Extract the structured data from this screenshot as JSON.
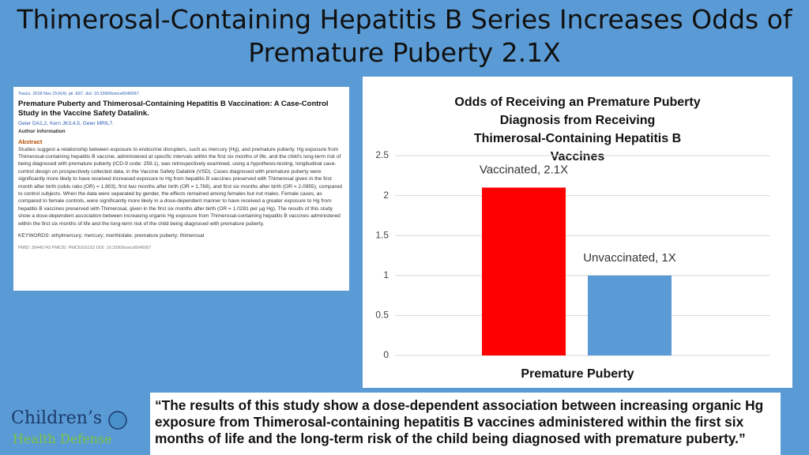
{
  "slide_title": "Thimerosal-Containing Hepatitis B Series Increases Odds of Premature Puberty 2.1X",
  "paper": {
    "citation": "Toxics. 2018 Nov 15;6(4). pii: E67. doi: 10.3390/toxics6040067.",
    "title": "Premature Puberty and Thimerosal-Containing Hepatitis B Vaccination: A Case-Control Study in the Vaccine Safety Datalink.",
    "authors": "Geier DA1,2, Kern JK3,4,5, Geier MR6,7.",
    "author_info": "Author information",
    "abstract_heading": "Abstract",
    "abstract": "Studies suggest a relationship between exposure to endocrine disrupters, such as mercury (Hg), and premature puberty. Hg exposure from Thimerosal-containing hepatitis B vaccine, administered at specific intervals within the first six months of life, and the child's long-term risk of being diagnosed with premature puberty (ICD-9 code: 259.1), was retrospectively examined, using a hypothesis-testing, longitudinal case-control design on prospectively collected data, in the Vaccine Safety Datalink (VSD). Cases diagnosed with premature puberty were significantly more likely to have received increased exposure to Hg from hepatitis B vaccines preserved with Thimerosal given in the first month after birth (odds ratio (OR) = 1.803), first two months after birth (OR = 1.768), and first six months after birth (OR = 2.0955), compared to control subjects. When the data were separated by gender, the effects remained among females but not males. Female cases, as compared to female controls, were significantly more likely in a dose-dependent manner to have received a greater exposure to Hg from hepatitis B vaccines preserved with Thimerosal, given in the first six months after birth (OR = 1.0281 per µg Hg). The results of this study show a dose-dependent association between increasing organic Hg exposure from Thimerosal-containing hepatitis B vaccines administered within the first six months of life and the long-term risk of the child being diagnosed with premature puberty.",
    "keywords": "KEYWORDS: ethylmercury; mercury; merthiolate; premature puberty; thimerosal",
    "ids": "PMID: 30445743   PMCID: PMC6316152   DOI: 10.3390/toxics6040067"
  },
  "chart_data": {
    "type": "bar",
    "title": "Odds of Receiving an Premature Puberty Diagnosis from Receiving Thimerosal-Containing Hepatitis B Vaccines",
    "x_label": "Premature Puberty",
    "categories": [
      null,
      null
    ],
    "values": [
      2.1,
      1
    ],
    "value_labels": [
      "Vaccinated, 2.1X",
      "Unvaccinated, 1X"
    ],
    "colors": [
      "#ff0000",
      "#5b9bd5"
    ],
    "ylim": [
      0,
      2.5
    ],
    "yticks": [
      0,
      0.5,
      1,
      1.5,
      2,
      2.5
    ],
    "grid": true
  },
  "quote": "“The results of this study show a dose-dependent association between increasing organic Hg exposure from Thimerosal-containing hepatitis B vaccines administered within the first six months of life and the long-term risk of the child being diagnosed with premature puberty.”",
  "logo": {
    "line1": "Children’s",
    "line2": "Health Defense"
  }
}
